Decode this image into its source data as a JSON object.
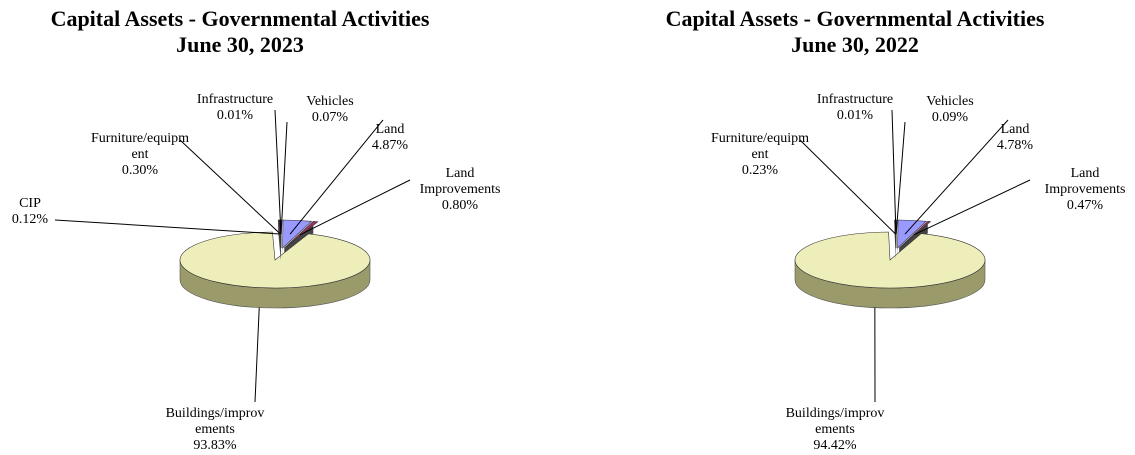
{
  "chart_data": [
    {
      "type": "pie",
      "title": "Capital Assets - Governmental Activities",
      "subtitle": "June 30, 2023",
      "categories": [
        "Vehicles",
        "Land",
        "Land Improvements",
        "Buildings/improvements",
        "CIP",
        "Furniture/equipment",
        "Infrastructure"
      ],
      "values": [
        0.07,
        4.87,
        0.8,
        93.83,
        0.12,
        0.3,
        0.01
      ],
      "value_labels": [
        "0.07%",
        "4.87%",
        "0.80%",
        "93.83%",
        "0.12%",
        "0.30%",
        "0.01%"
      ],
      "colors": [
        "#ffffcc",
        "#9999ff",
        "#993366",
        "#eeeebb",
        "#ccffff",
        "#660066",
        "#ff8080"
      ]
    },
    {
      "type": "pie",
      "title": "Capital Assets - Governmental Activities",
      "subtitle": "June 30, 2022",
      "categories": [
        "Vehicles",
        "Land",
        "Land Improvements",
        "Buildings/improvements",
        "Furniture/equipment",
        "Infrastructure"
      ],
      "values": [
        0.09,
        4.78,
        0.47,
        94.42,
        0.23,
        0.01
      ],
      "value_labels": [
        "0.09%",
        "4.78%",
        "0.47%",
        "94.42%",
        "0.23%",
        "0.01%"
      ],
      "colors": [
        "#ffffcc",
        "#9999ff",
        "#993366",
        "#eeeebb",
        "#660066",
        "#ff8080"
      ]
    }
  ]
}
